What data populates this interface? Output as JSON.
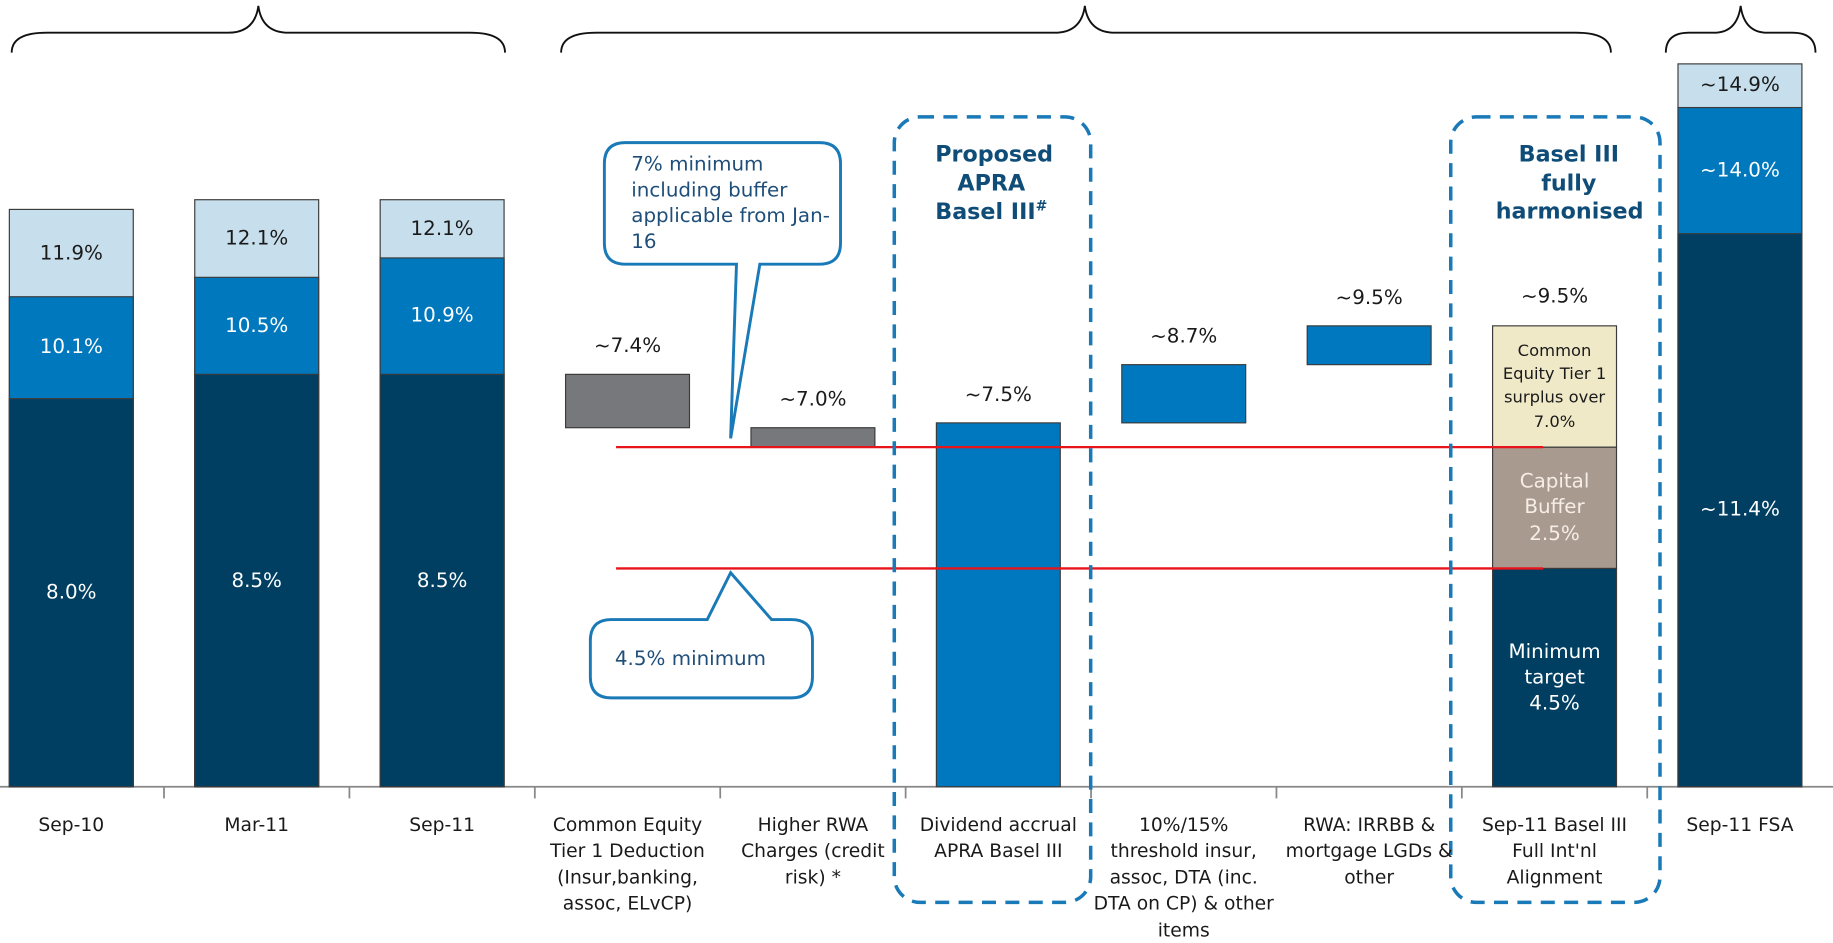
{
  "chart_data": {
    "type": "waterfall",
    "categories": [
      "Sep-10",
      "Mar-11",
      "Sep-11",
      "Common Equity Tier 1 Deduction (Insur,banking, assoc, ELvCP)",
      "Higher RWA Charges (credit risk) *",
      "Dividend accrual APRA Basel III",
      "10%/15% threshold insur, assoc, DTA (inc. DTA on CP) & other items",
      "RWA: IRRBB & mortgage LGDs & other",
      "Sep-11 Basel III Full Int'nl Alignment",
      "Sep-11 FSA"
    ],
    "series": [
      {
        "color": "#003f62",
        "label_color": "#ffffff",
        "values": [
          8.0,
          8.5,
          8.5,
          null,
          null,
          null,
          null,
          null,
          null,
          11.4
        ],
        "value_labels": [
          "8.0%",
          "8.5%",
          "8.5%",
          null,
          null,
          null,
          null,
          null,
          null,
          "~11.4%"
        ]
      },
      {
        "color": "#0078bd",
        "label_color": "#ffffff",
        "values": [
          10.1,
          10.5,
          10.9,
          null,
          null,
          null,
          null,
          null,
          null,
          14.0
        ],
        "value_labels": [
          "10.1%",
          "10.5%",
          "10.9%",
          null,
          null,
          null,
          null,
          null,
          null,
          "~14.0%"
        ]
      },
      {
        "color": "#c7dfec",
        "label_color": "#1a1a1a",
        "values": [
          11.9,
          12.1,
          12.1,
          null,
          null,
          null,
          null,
          null,
          null,
          14.9
        ],
        "value_labels": [
          "11.9%",
          "12.1%",
          "12.1%",
          null,
          null,
          null,
          null,
          null,
          null,
          "~14.9%"
        ]
      }
    ],
    "steps": [
      {
        "value": 7.4,
        "label": "~7.4%",
        "color": "#77787b"
      },
      {
        "value": 7.0,
        "label": "~7.0%",
        "color": "#77787b"
      },
      {
        "value": 7.5,
        "label": "~7.5%",
        "color": "#0078bf",
        "total": true
      },
      {
        "value": 8.7,
        "label": "~8.7%",
        "color": "#0078bf"
      },
      {
        "value": 9.5,
        "label": "~9.5%",
        "color": "#0078bf"
      }
    ],
    "stack": {
      "total": 9.5,
      "total_label": "~9.5%",
      "segments": [
        {
          "name": "Minimum target 4.5%",
          "value": 4.5,
          "color": "#003f62",
          "label_color": "#ffffff"
        },
        {
          "name": "Capital Buffer 2.5%",
          "value": 2.5,
          "color": "#a89a8e",
          "label_color": "#f6eee6"
        },
        {
          "name": "Common Equity Tier 1 surplus over 7.0%",
          "color": "#efe9c8",
          "label_color": "#1a1a1a"
        }
      ]
    },
    "reference_lines": [
      7.0,
      4.5
    ],
    "reference_color": "#e8141b",
    "callouts": [
      "7% minimum including buffer applicable from Jan-16",
      "4.5% minimum"
    ],
    "boxes": [
      {
        "title": "Proposed APRA Basel III",
        "mark": "#"
      },
      {
        "title": "Basel III fully harmonised"
      }
    ]
  }
}
